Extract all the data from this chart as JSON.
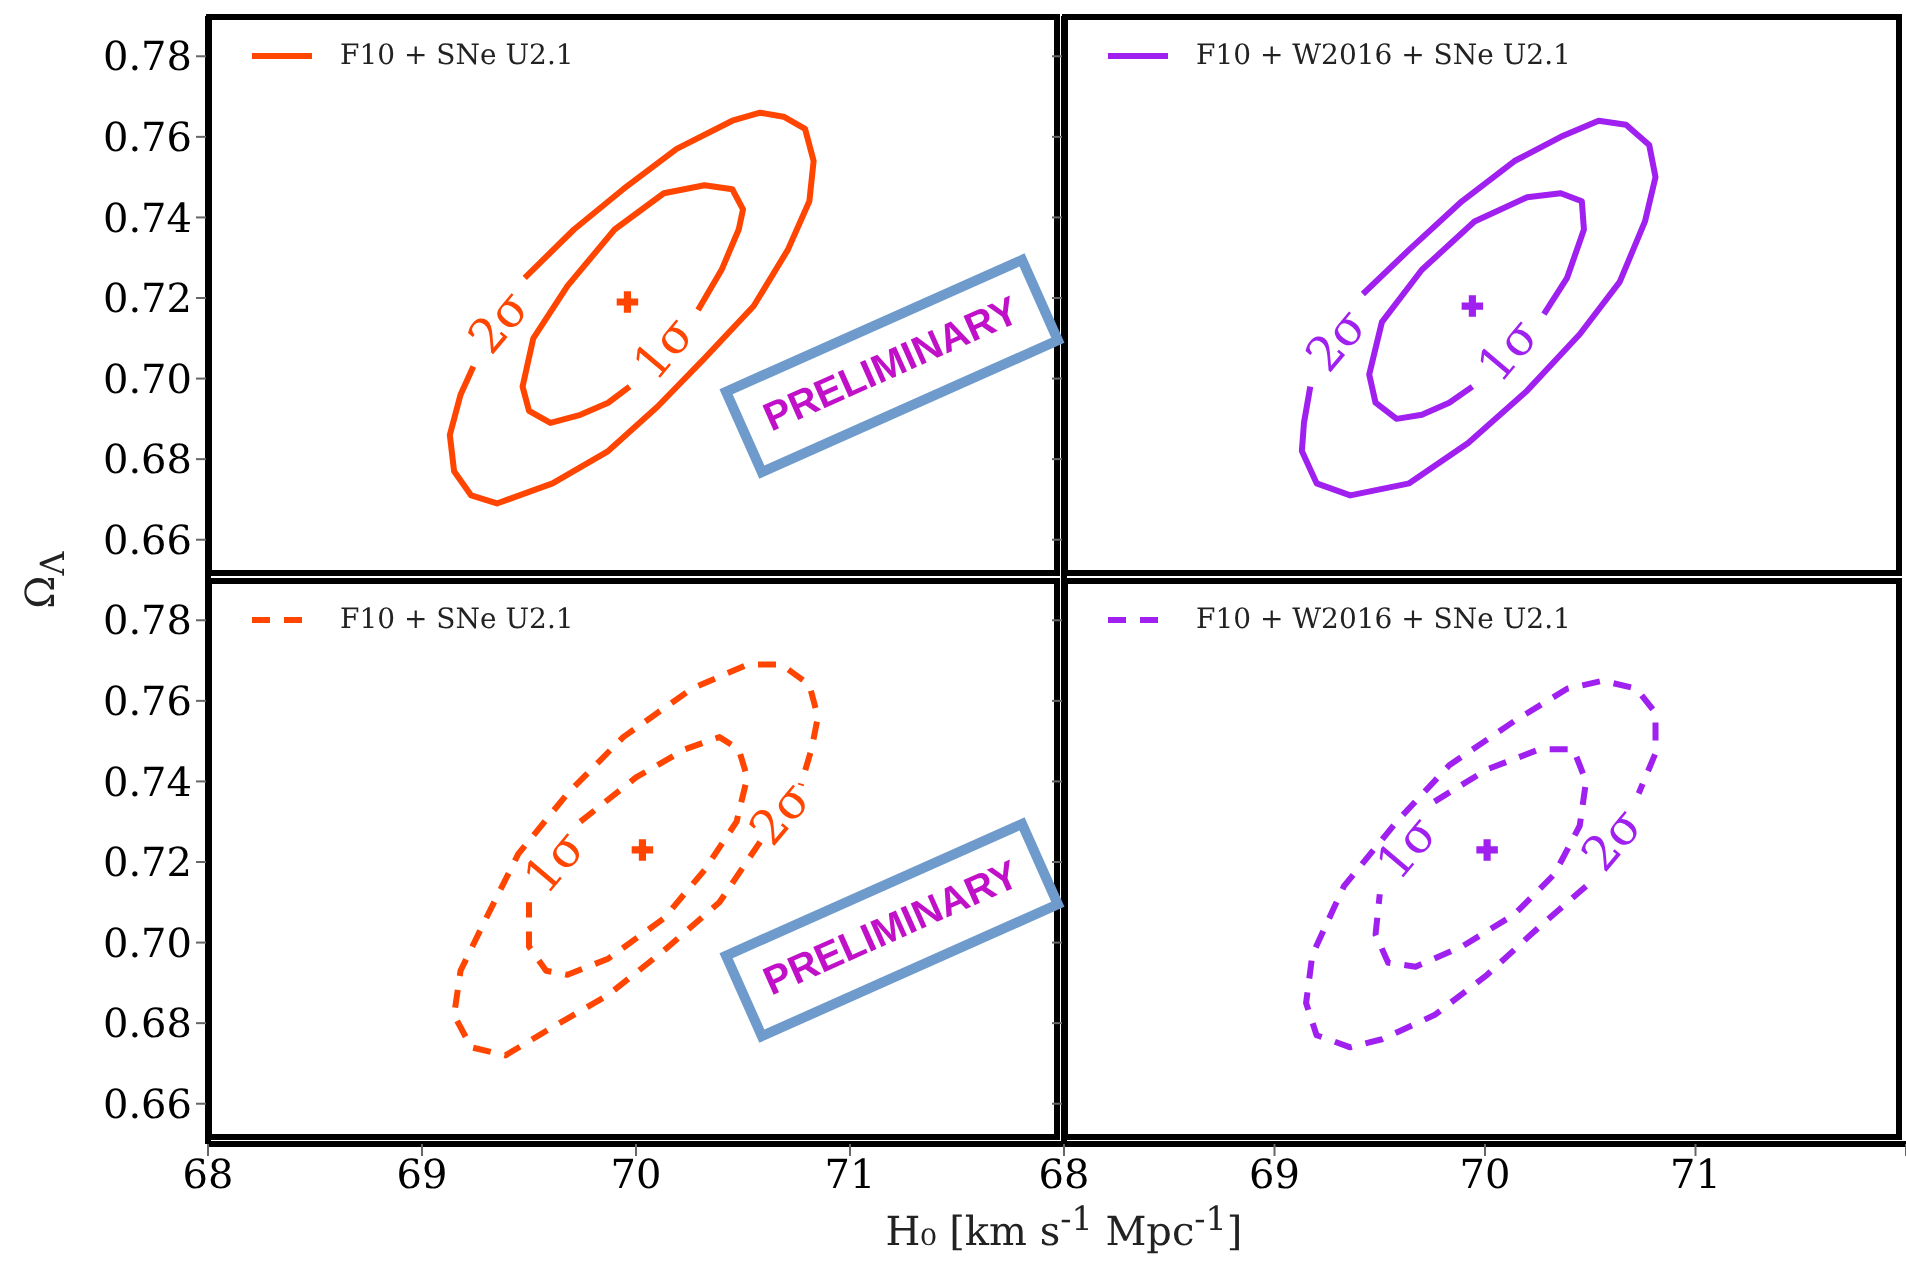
{
  "chart_data": [
    {
      "type": "line",
      "ylabel": "Ω$_{Λ}$",
      "xlim": [
        68,
        72
      ],
      "ylim": [
        0.65,
        0.79
      ],
      "xticks": [
        68,
        69,
        70,
        71
      ],
      "yticks": [
        {
          "value": 0.66,
          "label": "0.66"
        },
        {
          "value": 0.68,
          "label": "0.68"
        },
        {
          "value": 0.7,
          "label": "0.70"
        },
        {
          "value": 0.72,
          "label": "0.72"
        },
        {
          "value": 0.74,
          "label": "0.74"
        },
        {
          "value": 0.76,
          "label": "0.76"
        },
        {
          "value": 0.78,
          "label": "0.78"
        }
      ],
      "tick_labels": "y",
      "legend": "top left",
      "line_style": "solid",
      "series": [
        {
          "name": "F10 + SNe U2.1",
          "color": "#ff4500",
          "x": [
            69.24,
            69.18,
            69.13,
            69.15,
            69.23,
            69.35,
            69.61,
            69.87,
            70.1,
            70.32,
            70.55,
            70.71,
            70.81,
            70.83,
            70.79,
            70.69,
            70.58,
            70.45,
            70.19,
            69.94,
            69.71,
            69.48
          ],
          "values": [
            0.703,
            0.696,
            0.686,
            0.677,
            0.671,
            0.669,
            0.674,
            0.682,
            0.693,
            0.705,
            0.718,
            0.732,
            0.744,
            0.754,
            0.762,
            0.765,
            0.766,
            0.764,
            0.757,
            0.747,
            0.737,
            0.725
          ]
        },
        {
          "color": "#ff4500",
          "x": [
            70.29,
            70.4,
            70.48,
            70.5,
            70.45,
            70.32,
            70.13,
            69.9,
            69.68,
            69.52,
            69.47,
            69.5,
            69.6,
            69.74,
            69.87,
            69.97
          ],
          "values": [
            0.717,
            0.727,
            0.737,
            0.742,
            0.747,
            0.748,
            0.746,
            0.737,
            0.723,
            0.71,
            0.698,
            0.692,
            0.689,
            0.691,
            0.694,
            0.698
          ]
        },
        {
          "type": "scatter",
          "marker": "cross",
          "color": "#ff4500",
          "x": [
            69.96
          ],
          "values": [
            0.719
          ]
        }
      ],
      "annotations": [
        "2σ",
        "1σ",
        "PRELIMINARY"
      ]
    },
    {
      "type": "line",
      "xlim": [
        68,
        72
      ],
      "ylim": [
        0.65,
        0.79
      ],
      "xticks": [
        68,
        69,
        70,
        71
      ],
      "yticks": [
        0.66,
        0.68,
        0.7,
        0.72,
        0.74,
        0.76,
        0.78
      ],
      "tick_labels": false,
      "legend": "top left",
      "line_style": "solid",
      "series": [
        {
          "name": "F10 + W2016 + SNe U2.1",
          "color": "#a020f0",
          "x": [
            69.17,
            69.14,
            69.13,
            69.2,
            69.36,
            69.64,
            69.92,
            70.2,
            70.45,
            70.64,
            70.76,
            70.81,
            70.78,
            70.67,
            70.54,
            70.36,
            70.14,
            69.89,
            69.64,
            69.42
          ],
          "values": [
            0.698,
            0.689,
            0.682,
            0.674,
            0.671,
            0.674,
            0.684,
            0.697,
            0.711,
            0.724,
            0.739,
            0.75,
            0.758,
            0.763,
            0.764,
            0.76,
            0.754,
            0.744,
            0.732,
            0.721
          ]
        },
        {
          "color": "#a020f0",
          "x": [
            70.28,
            70.39,
            70.47,
            70.46,
            70.36,
            70.2,
            69.95,
            69.7,
            69.51,
            69.45,
            69.48,
            69.58,
            69.7,
            69.83,
            69.94
          ],
          "values": [
            0.716,
            0.725,
            0.737,
            0.744,
            0.746,
            0.745,
            0.739,
            0.727,
            0.714,
            0.701,
            0.694,
            0.69,
            0.691,
            0.694,
            0.698
          ]
        },
        {
          "type": "scatter",
          "marker": "cross",
          "color": "#a020f0",
          "x": [
            69.94
          ],
          "values": [
            0.718
          ]
        }
      ],
      "annotations": [
        "2σ",
        "1σ"
      ]
    },
    {
      "type": "line",
      "xlabel": "H₀ [km s$^{-1}$ Mpc$^{-1}$]",
      "xlim": [
        68,
        72
      ],
      "ylim": [
        0.65,
        0.79
      ],
      "xticks": [
        68,
        69,
        70,
        71,
        {
          "value": 72,
          "label": null
        }
      ],
      "yticks": [
        {
          "value": 0.66,
          "label": "0.66"
        },
        {
          "value": 0.68,
          "label": "0.68"
        },
        {
          "value": 0.7,
          "label": "0.70"
        },
        {
          "value": 0.72,
          "label": "0.72"
        },
        {
          "value": 0.74,
          "label": "0.74"
        },
        {
          "value": 0.76,
          "label": "0.76"
        },
        {
          "value": 0.78,
          "label": "0.78"
        }
      ],
      "legend": "top left",
      "line_style": "dashed",
      "series": [
        {
          "name": "F10 + SNe U2.1",
          "color": "#ff4500",
          "x": [
            70.58,
            70.39,
            70.13,
            69.87,
            69.61,
            69.39,
            69.23,
            69.15,
            69.18,
            69.29,
            69.45,
            69.68,
            69.94,
            70.26,
            70.52,
            70.68,
            70.81,
            70.85,
            70.82,
            70.77
          ],
          "values": [
            0.725,
            0.71,
            0.698,
            0.687,
            0.679,
            0.672,
            0.674,
            0.682,
            0.693,
            0.705,
            0.722,
            0.737,
            0.751,
            0.763,
            0.769,
            0.769,
            0.764,
            0.756,
            0.748,
            0.739
          ]
        },
        {
          "color": "#ff4500",
          "x": [
            69.74,
            70.0,
            70.23,
            70.39,
            70.48,
            70.52,
            70.47,
            70.32,
            70.13,
            69.87,
            69.68,
            69.58,
            69.5,
            69.5
          ],
          "values": [
            0.73,
            0.741,
            0.748,
            0.751,
            0.748,
            0.741,
            0.73,
            0.718,
            0.706,
            0.696,
            0.692,
            0.693,
            0.699,
            0.71
          ]
        },
        {
          "type": "scatter",
          "marker": "cross",
          "color": "#ff4500",
          "x": [
            70.03
          ],
          "values": [
            0.723
          ]
        }
      ],
      "annotations": [
        "2σ",
        "1σ",
        "PRELIMINARY"
      ]
    },
    {
      "type": "line",
      "xlim": [
        68,
        72
      ],
      "ylim": [
        0.65,
        0.79
      ],
      "xticks": [
        68,
        69,
        70,
        71,
        {
          "value": 72,
          "label": null
        }
      ],
      "yticks": [
        0.66,
        0.68,
        0.7,
        0.72,
        0.74,
        0.76,
        0.78
      ],
      "tick_labels": "x",
      "legend": "top left",
      "line_style": "dashed",
      "series": [
        {
          "name": "F10 + W2016 + SNe U2.1",
          "color": "#a020f0",
          "x": [
            70.48,
            70.26,
            70.01,
            69.76,
            69.51,
            69.36,
            69.2,
            69.15,
            69.18,
            69.33,
            69.58,
            69.83,
            70.14,
            70.39,
            70.56,
            70.72,
            70.81,
            70.81,
            70.73
          ],
          "values": [
            0.714,
            0.704,
            0.692,
            0.682,
            0.676,
            0.674,
            0.677,
            0.685,
            0.697,
            0.714,
            0.73,
            0.744,
            0.755,
            0.763,
            0.765,
            0.763,
            0.757,
            0.747,
            0.737
          ]
        },
        {
          "color": "#a020f0",
          "x": [
            69.76,
            70.01,
            70.26,
            70.42,
            70.48,
            70.45,
            70.33,
            70.14,
            69.89,
            69.67,
            69.54,
            69.48,
            69.5
          ],
          "values": [
            0.735,
            0.743,
            0.748,
            0.748,
            0.74,
            0.729,
            0.717,
            0.707,
            0.699,
            0.694,
            0.695,
            0.702,
            0.712
          ]
        },
        {
          "type": "scatter",
          "marker": "cross",
          "color": "#a020f0",
          "x": [
            70.01
          ],
          "values": [
            0.723
          ]
        }
      ],
      "annotations": [
        "2σ",
        "1σ"
      ]
    }
  ]
}
